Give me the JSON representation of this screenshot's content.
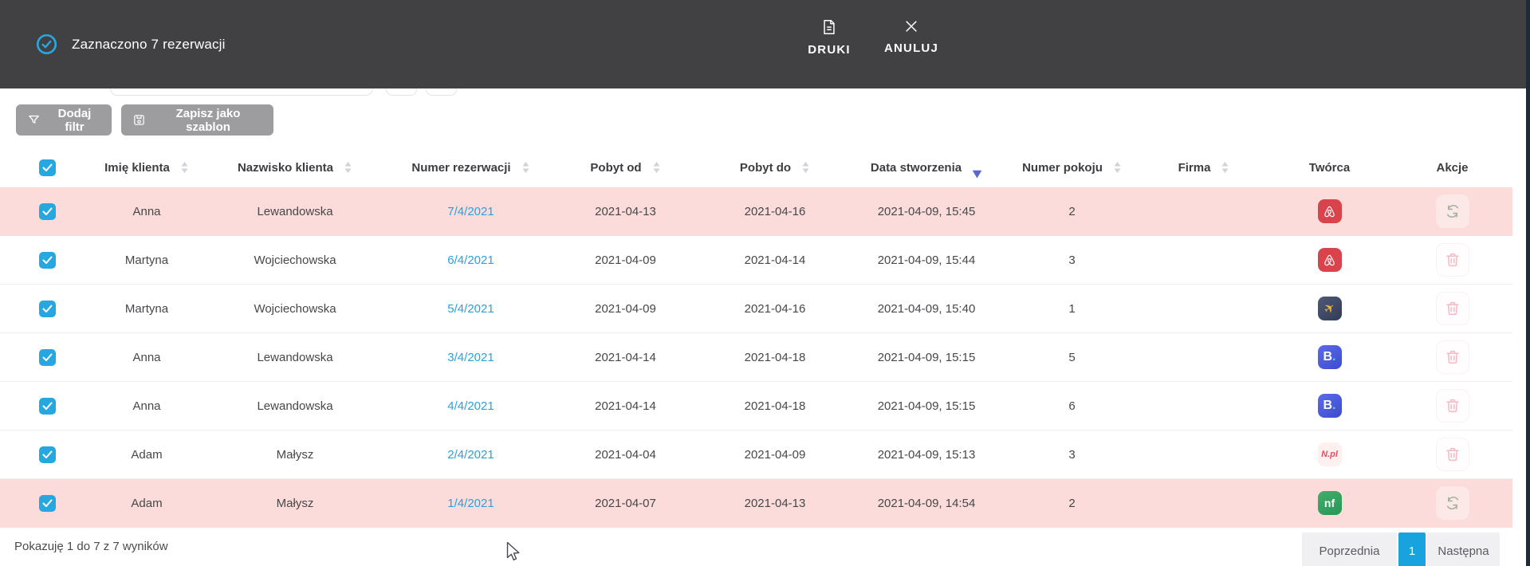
{
  "selection_bar": {
    "text": "Zaznaczono 7 rezerwacji",
    "print_label": "DRUKI",
    "cancel_label": "ANULUJ"
  },
  "filters": {
    "add_filter_label": "Dodaj filtr",
    "save_template_label": "Zapisz jako szablon"
  },
  "table": {
    "columns": [
      {
        "key": "select",
        "label": "",
        "type": "checkbox",
        "checked": true
      },
      {
        "key": "imie",
        "label": "Imię klienta",
        "sortable": true
      },
      {
        "key": "nazwisko",
        "label": "Nazwisko klienta",
        "sortable": true
      },
      {
        "key": "numer",
        "label": "Numer rezerwacji",
        "sortable": true
      },
      {
        "key": "pobyt_od",
        "label": "Pobyt od",
        "sortable": true
      },
      {
        "key": "pobyt_do",
        "label": "Pobyt do",
        "sortable": true
      },
      {
        "key": "data",
        "label": "Data stworzenia",
        "sortable": true,
        "sorted": "desc"
      },
      {
        "key": "pokoj",
        "label": "Numer pokoju",
        "sortable": true
      },
      {
        "key": "firma",
        "label": "Firma",
        "sortable": true
      },
      {
        "key": "tworca",
        "label": "Twórca",
        "sortable": false
      },
      {
        "key": "akcje",
        "label": "Akcje",
        "sortable": false
      }
    ],
    "rows": [
      {
        "selected": true,
        "highlighted": true,
        "imie": "Anna",
        "nazwisko": "Lewandowska",
        "numer": "7/4/2021",
        "pobyt_od": "2021-04-13",
        "pobyt_do": "2021-04-16",
        "data": "2021-04-09, 15:45",
        "pokoj": "2",
        "firma": "",
        "tworca": "airbnb-icon",
        "akcja": "refresh"
      },
      {
        "selected": true,
        "highlighted": false,
        "imie": "Martyna",
        "nazwisko": "Wojciechowska",
        "numer": "6/4/2021",
        "pobyt_od": "2021-04-09",
        "pobyt_do": "2021-04-14",
        "data": "2021-04-09, 15:44",
        "pokoj": "3",
        "firma": "",
        "tworca": "airbnb-icon",
        "akcja": "delete"
      },
      {
        "selected": true,
        "highlighted": false,
        "imie": "Martyna",
        "nazwisko": "Wojciechowska",
        "numer": "5/4/2021",
        "pobyt_od": "2021-04-09",
        "pobyt_do": "2021-04-16",
        "data": "2021-04-09, 15:40",
        "pokoj": "1",
        "firma": "",
        "tworca": "travel-plane-icon",
        "akcja": "delete"
      },
      {
        "selected": true,
        "highlighted": false,
        "imie": "Anna",
        "nazwisko": "Lewandowska",
        "numer": "3/4/2021",
        "pobyt_od": "2021-04-14",
        "pobyt_do": "2021-04-18",
        "data": "2021-04-09, 15:15",
        "pokoj": "5",
        "firma": "",
        "tworca": "booking-icon",
        "akcja": "delete"
      },
      {
        "selected": true,
        "highlighted": false,
        "imie": "Anna",
        "nazwisko": "Lewandowska",
        "numer": "4/4/2021",
        "pobyt_od": "2021-04-14",
        "pobyt_do": "2021-04-18",
        "data": "2021-04-09, 15:15",
        "pokoj": "6",
        "firma": "",
        "tworca": "booking-icon",
        "akcja": "delete"
      },
      {
        "selected": true,
        "highlighted": false,
        "imie": "Adam",
        "nazwisko": "Małysz",
        "numer": "2/4/2021",
        "pobyt_od": "2021-04-04",
        "pobyt_do": "2021-04-09",
        "data": "2021-04-09, 15:13",
        "pokoj": "3",
        "firma": "",
        "tworca": "nocowanie-pl-icon",
        "akcja": "delete"
      },
      {
        "selected": true,
        "highlighted": true,
        "imie": "Adam",
        "nazwisko": "Małysz",
        "numer": "1/4/2021",
        "pobyt_od": "2021-04-07",
        "pobyt_do": "2021-04-13",
        "data": "2021-04-09, 14:54",
        "pokoj": "2",
        "firma": "",
        "tworca": "nf-icon",
        "akcja": "refresh"
      }
    ],
    "creators": {
      "airbnb-icon": {
        "text": ""
      },
      "travel-plane-icon": {
        "text": ""
      },
      "booking-icon": {
        "text": "B",
        "dot": "."
      },
      "nocowanie-pl-icon": {
        "text": "N.pl"
      },
      "nf-icon": {
        "text": "nf"
      }
    }
  },
  "footer": {
    "summary": "Pokazuję 1 do 7 z 7 wyników",
    "prev_label": "Poprzednia",
    "page_label": "1",
    "next_label": "Następna"
  },
  "colors": {
    "bar_bg": "#414144",
    "accent_blue": "#27a7e0",
    "row_highlight_pink": "#fbdcda",
    "link_blue": "#2aa1dd",
    "sort_active": "#5b66cf",
    "pagination_active": "#19a3de",
    "button_gray": "#9d9d9f"
  }
}
